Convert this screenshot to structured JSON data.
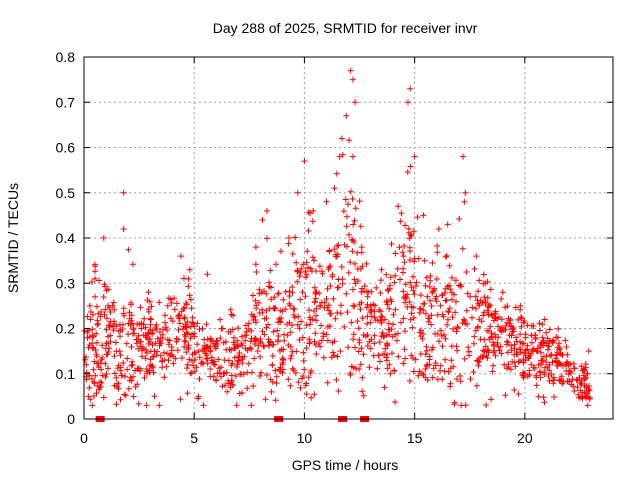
{
  "chart_data": {
    "type": "scatter",
    "title": "Day 288 of 2025, SRMTID for receiver invr",
    "xlabel": "GPS time / hours",
    "ylabel": "SRMTID / TECUs",
    "xlim": [
      0,
      24
    ],
    "ylim": [
      0,
      0.8
    ],
    "xticks": [
      0,
      5,
      10,
      15,
      20
    ],
    "yticks": [
      0,
      0.1,
      0.2,
      0.3,
      0.4,
      0.5,
      0.6,
      0.7,
      0.8
    ],
    "grid": true,
    "marker": "+",
    "color": "#ff0000",
    "envelope_hours": [
      0,
      0.5,
      1,
      1.5,
      2,
      2.5,
      3,
      3.5,
      4,
      4.5,
      5,
      5.5,
      6,
      6.5,
      7,
      7.5,
      8,
      8.5,
      9,
      9.5,
      10,
      10.5,
      11,
      11.5,
      12,
      12.5,
      13,
      13.5,
      14,
      14.5,
      15,
      15.5,
      16,
      16.5,
      17,
      17.5,
      18,
      18.5,
      19,
      19.5,
      20,
      20.5,
      21,
      21.5,
      22,
      22.5,
      23
    ],
    "envelope_center": [
      0.13,
      0.16,
      0.16,
      0.14,
      0.15,
      0.15,
      0.16,
      0.17,
      0.18,
      0.2,
      0.16,
      0.14,
      0.13,
      0.13,
      0.13,
      0.16,
      0.2,
      0.19,
      0.17,
      0.19,
      0.22,
      0.24,
      0.25,
      0.28,
      0.3,
      0.25,
      0.2,
      0.19,
      0.2,
      0.26,
      0.25,
      0.2,
      0.18,
      0.18,
      0.17,
      0.19,
      0.2,
      0.19,
      0.17,
      0.15,
      0.14,
      0.14,
      0.13,
      0.12,
      0.11,
      0.08,
      0.07
    ],
    "envelope_max": [
      0.25,
      0.4,
      0.32,
      0.3,
      0.42,
      0.32,
      0.3,
      0.3,
      0.32,
      0.36,
      0.33,
      0.22,
      0.24,
      0.3,
      0.23,
      0.28,
      0.44,
      0.46,
      0.4,
      0.45,
      0.57,
      0.5,
      0.5,
      0.6,
      0.77,
      0.55,
      0.3,
      0.35,
      0.45,
      0.73,
      0.6,
      0.45,
      0.42,
      0.43,
      0.58,
      0.5,
      0.35,
      0.32,
      0.28,
      0.27,
      0.25,
      0.25,
      0.24,
      0.22,
      0.18,
      0.16,
      0.15
    ],
    "points": [
      [
        0.1,
        0.12
      ],
      [
        0.2,
        0.05
      ],
      [
        0.3,
        0.22
      ],
      [
        0.5,
        0.27
      ],
      [
        0.5,
        0.31
      ],
      [
        0.9,
        0.4
      ],
      [
        1.3,
        0.25
      ],
      [
        1.8,
        0.5
      ],
      [
        1.8,
        0.42
      ],
      [
        2.2,
        0.12
      ],
      [
        2.6,
        0.2
      ],
      [
        3.2,
        0.15
      ],
      [
        3.8,
        0.25
      ],
      [
        4.4,
        0.36
      ],
      [
        4.8,
        0.33
      ],
      [
        5.2,
        0.05
      ],
      [
        5.6,
        0.32
      ],
      [
        6.3,
        0.2
      ],
      [
        7.0,
        0.16
      ],
      [
        7.8,
        0.38
      ],
      [
        8.1,
        0.44
      ],
      [
        8.3,
        0.46
      ],
      [
        8.5,
        0.06
      ],
      [
        9.3,
        0.4
      ],
      [
        9.7,
        0.5
      ],
      [
        10.0,
        0.57
      ],
      [
        10.4,
        0.46
      ],
      [
        11.0,
        0.48
      ],
      [
        11.6,
        0.58
      ],
      [
        11.7,
        0.62
      ],
      [
        11.9,
        0.67
      ],
      [
        12.1,
        0.77
      ],
      [
        12.2,
        0.75
      ],
      [
        12.3,
        0.7
      ],
      [
        12.2,
        0.58
      ],
      [
        12.6,
        0.38
      ],
      [
        12.9,
        0.28
      ],
      [
        13.5,
        0.33
      ],
      [
        13.9,
        0.1
      ],
      [
        14.5,
        0.36
      ],
      [
        14.7,
        0.7
      ],
      [
        14.8,
        0.73
      ],
      [
        15.0,
        0.58
      ],
      [
        15.4,
        0.45
      ],
      [
        16.1,
        0.42
      ],
      [
        16.5,
        0.43
      ],
      [
        17.2,
        0.58
      ],
      [
        17.3,
        0.5
      ],
      [
        17.8,
        0.36
      ],
      [
        18.2,
        0.3
      ],
      [
        19.0,
        0.28
      ],
      [
        19.8,
        0.25
      ],
      [
        20.9,
        0.22
      ],
      [
        21.5,
        0.18
      ],
      [
        22.0,
        0.12
      ],
      [
        22.6,
        0.05
      ],
      [
        22.9,
        0.15
      ]
    ],
    "gaps_hours": [
      0.8,
      8.9,
      11.8,
      12.8
    ]
  }
}
